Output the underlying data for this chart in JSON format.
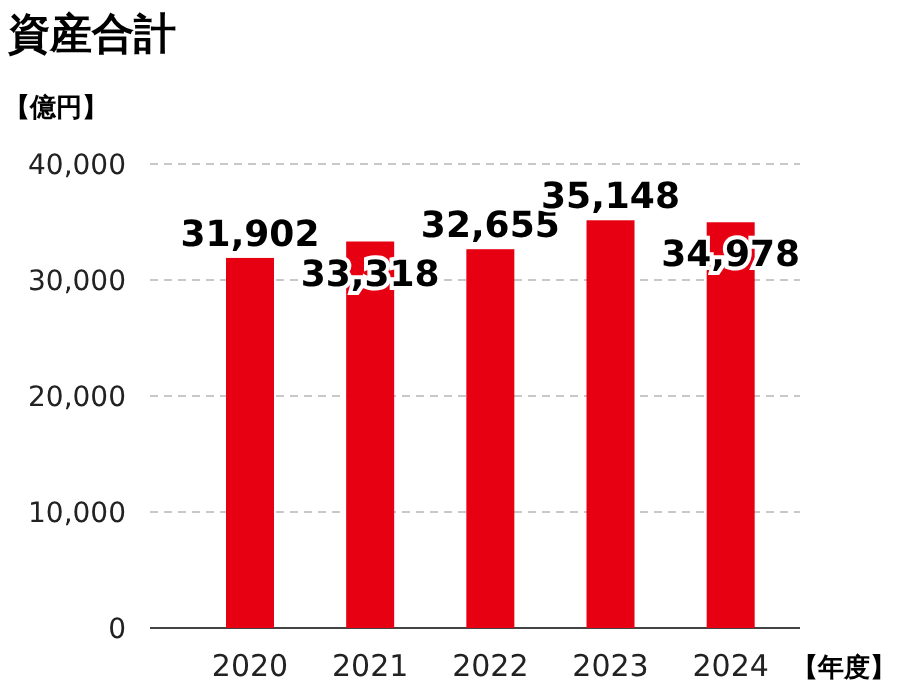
{
  "chart_data": {
    "type": "bar",
    "title": "資産合計",
    "ylabel": "【億円】",
    "xlabel": "【年度】",
    "categories": [
      "2020",
      "2021",
      "2022",
      "2023",
      "2024"
    ],
    "values": [
      31902,
      33318,
      32655,
      35148,
      34978
    ],
    "color": "#e60012",
    "ylim": [
      0,
      40000
    ],
    "yticks": [
      {
        "value": 0,
        "label": "0"
      },
      {
        "value": 10000,
        "label": "10,000"
      },
      {
        "value": 20000,
        "label": "20,000"
      },
      {
        "value": 30000,
        "label": "30,000"
      },
      {
        "value": 40000,
        "label": "40,000"
      }
    ],
    "value_labels": [
      "31,902",
      "33,318",
      "32,655",
      "35,148",
      "34,978"
    ],
    "grid": "y"
  }
}
